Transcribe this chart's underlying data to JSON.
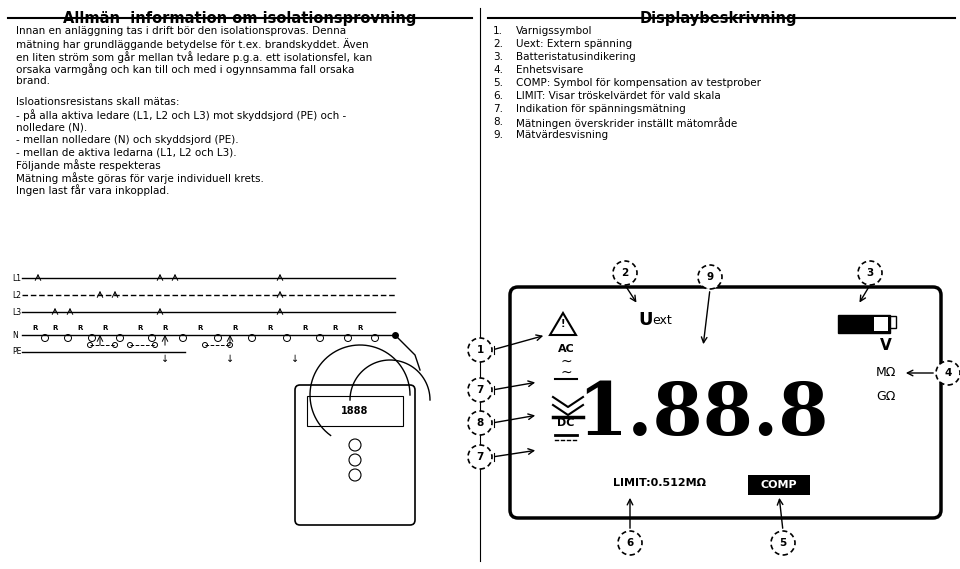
{
  "bg_color": "#ffffff",
  "left_title": "Allmän  information om isolationsprovning",
  "right_title": "Displaybeskrivning",
  "left_para1_lines": [
    "Innan en anläggning tas i drift bör den isolationsprovas. Denna",
    "mätning har grundläggande betydelse för t.ex. brandskyddet. Även",
    "en liten ström som går mellan två ledare p.g.a. ett isolationsfel, kan",
    "orsaka varmgång och kan till och med i ogynnsamma fall orsaka",
    "brand."
  ],
  "left_para2_title": "Isloationsresistans skall mätas:",
  "left_para2_lines": [
    "- på alla aktiva ledare (L1, L2 och L3) mot skyddsjord (PE) och -",
    "nolledare (N).",
    "- mellan nolledare (N) och skyddsjord (PE).",
    "- mellan de aktiva ledarna (L1, L2 och L3).",
    "Följande måste respekteras",
    "Mätning måste göras för varje individuell krets.",
    "Ingen last får vara inkopplad."
  ],
  "right_list_nums": [
    "1.",
    "2.",
    "3.",
    "4.",
    "5.",
    "6.",
    "7.",
    "8.",
    "9."
  ],
  "right_list_texts": [
    "Varnigssymbol",
    "Uext: Extern spänning",
    "Batteristatusindikering",
    "Enhetsvisare",
    "COMP: Symbol för kompensation av testprober",
    "LIMIT: Visar tröskelvärdet för vald skala",
    "Indikation för spänningsmätning",
    "Mätningen överskrider inställt mätområde",
    "Mätvärdesvisning"
  ]
}
